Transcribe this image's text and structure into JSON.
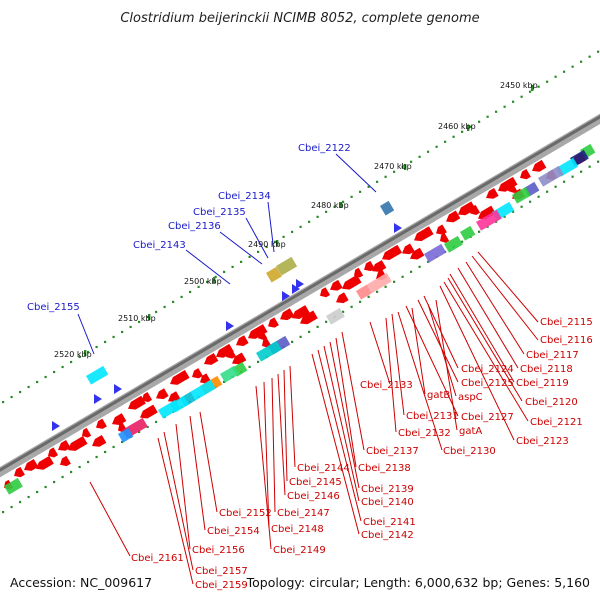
{
  "title": "Clostridium beijerinckii NCIMB 8052, complete genome",
  "footer": {
    "accession": "Accession: NC_009617",
    "summary": "Topology: circular; Length: 6,000,632 bp; Genes: 5,160"
  },
  "scale_labels": [
    "2450 kbp",
    "2460 kbp",
    "2470 kbp",
    "2480 kbp",
    "2490 kbp",
    "2500 kbp",
    "2510 kbp",
    "2520 kbp"
  ],
  "upper_gene_labels": [
    "Cbei_2122",
    "Cbei_2134",
    "Cbei_2135",
    "Cbei_2136",
    "Cbei_2143",
    "Cbei_2155"
  ],
  "lower_gene_labels": [
    "Cbei_2115",
    "Cbei_2116",
    "Cbei_2117",
    "Cbei_2118",
    "Cbei_2119",
    "Cbei_2120",
    "Cbei_2121",
    "Cbei_2123",
    "Cbei_2124",
    "Cbei_2125",
    "Cbei_2127",
    "Cbei_2130",
    "Cbei_2131",
    "Cbei_2132",
    "Cbei_2133",
    "Cbei_2137",
    "Cbei_2138",
    "Cbei_2139",
    "Cbei_2140",
    "Cbei_2141",
    "Cbei_2142",
    "Cbei_2144",
    "Cbei_2145",
    "Cbei_2146",
    "Cbei_2147",
    "Cbei_2148",
    "Cbei_2149",
    "Cbei_2152",
    "Cbei_2154",
    "Cbei_2156",
    "Cbei_2157",
    "Cbei_2159",
    "Cbei_2161",
    "gatB",
    "aspC",
    "gatA"
  ],
  "colors": {
    "forward_gene": "#3333ee",
    "reverse_gene": "#ee0000",
    "backbone": "#888888",
    "tick": "#2a8a2a",
    "label_blue": "#1a1acc",
    "label_red": "#cc0000"
  }
}
